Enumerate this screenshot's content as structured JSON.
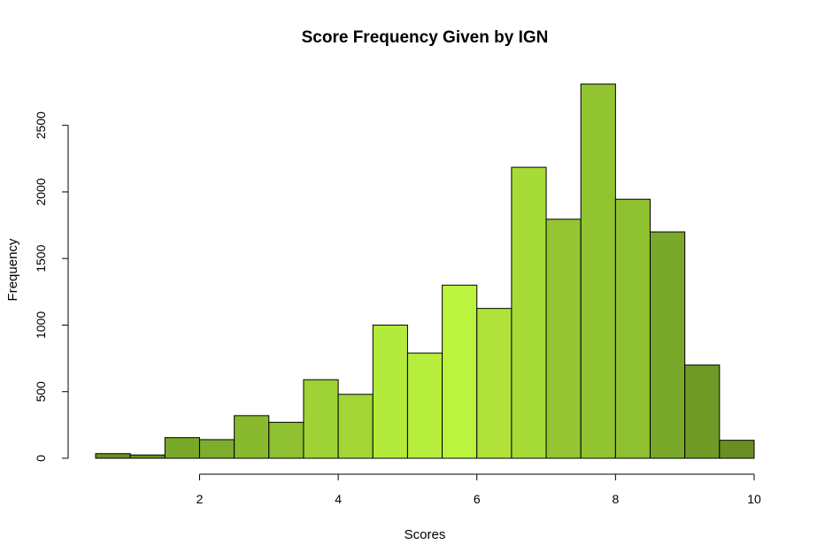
{
  "chart_data": {
    "type": "bar",
    "title": "Score Frequency Given by IGN",
    "xlabel": "Scores",
    "ylabel": "Frequency",
    "bin_edges": [
      0.5,
      1.0,
      1.5,
      2.0,
      2.5,
      3.0,
      3.5,
      4.0,
      4.5,
      5.0,
      5.5,
      6.0,
      6.5,
      7.0,
      7.5,
      8.0,
      8.5,
      9.0,
      9.5,
      10.0
    ],
    "values": [
      35,
      25,
      155,
      140,
      320,
      270,
      590,
      480,
      1000,
      790,
      1300,
      1125,
      2185,
      1795,
      2810,
      1945,
      1700,
      700,
      135
    ],
    "colors": [
      "#6b8e23",
      "#6b8e23",
      "#79a82a",
      "#7eac2c",
      "#88b92e",
      "#8ec030",
      "#9fd234",
      "#a4d636",
      "#b4ea3c",
      "#b7ed3d",
      "#bbf33f",
      "#b0e23a",
      "#a6db38",
      "#94c431",
      "#92c331",
      "#8ec030",
      "#7aa82a",
      "#6f9a26",
      "#6b8e23"
    ],
    "xlim": [
      0.5,
      10
    ],
    "ylim": [
      0,
      2810
    ],
    "x_ticks": [
      2,
      4,
      6,
      8,
      10
    ],
    "y_ticks": [
      0,
      500,
      1000,
      1500,
      2000,
      2500
    ],
    "grid": false,
    "legend": "none"
  }
}
